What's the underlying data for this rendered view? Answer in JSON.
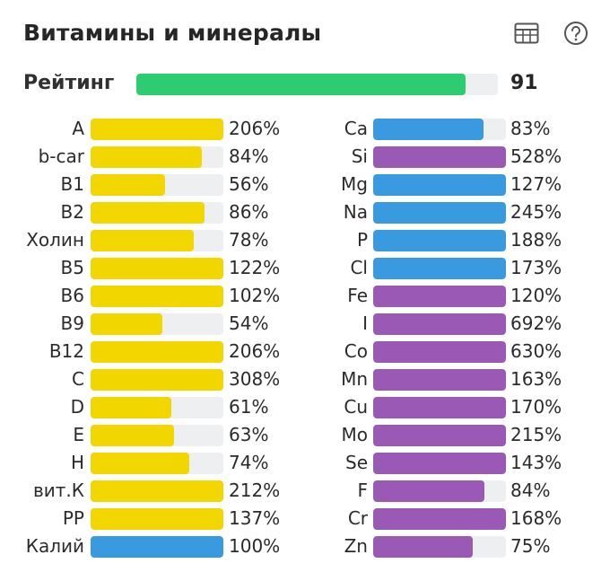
{
  "header": {
    "title": "Витамины и минералы",
    "table_icon": "table-icon",
    "help_icon": "help-circle-icon"
  },
  "rating": {
    "label": "Рейтинг",
    "value": "91",
    "fill_percent": 91
  },
  "colors": {
    "yellow": "#f2d600",
    "blue": "#3a9ae0",
    "purple": "#9b59b6",
    "green": "#2ecc71",
    "track": "#eeeff1"
  },
  "left_column": [
    {
      "name": "A",
      "value": "206%",
      "fill": 100,
      "color": "yellow"
    },
    {
      "name": "b-car",
      "value": "84%",
      "fill": 84,
      "color": "yellow"
    },
    {
      "name": "B1",
      "value": "56%",
      "fill": 56,
      "color": "yellow"
    },
    {
      "name": "B2",
      "value": "86%",
      "fill": 86,
      "color": "yellow"
    },
    {
      "name": "Холин",
      "value": "78%",
      "fill": 78,
      "color": "yellow"
    },
    {
      "name": "B5",
      "value": "122%",
      "fill": 100,
      "color": "yellow"
    },
    {
      "name": "B6",
      "value": "102%",
      "fill": 100,
      "color": "yellow"
    },
    {
      "name": "B9",
      "value": "54%",
      "fill": 54,
      "color": "yellow"
    },
    {
      "name": "B12",
      "value": "206%",
      "fill": 100,
      "color": "yellow"
    },
    {
      "name": "C",
      "value": "308%",
      "fill": 100,
      "color": "yellow"
    },
    {
      "name": "D",
      "value": "61%",
      "fill": 61,
      "color": "yellow"
    },
    {
      "name": "E",
      "value": "63%",
      "fill": 63,
      "color": "yellow"
    },
    {
      "name": "H",
      "value": "74%",
      "fill": 74,
      "color": "yellow"
    },
    {
      "name": "вит.К",
      "value": "212%",
      "fill": 100,
      "color": "yellow"
    },
    {
      "name": "PP",
      "value": "137%",
      "fill": 100,
      "color": "yellow"
    },
    {
      "name": "Калий",
      "value": "100%",
      "fill": 100,
      "color": "blue"
    }
  ],
  "right_column": [
    {
      "name": "Ca",
      "value": "83%",
      "fill": 83,
      "color": "blue"
    },
    {
      "name": "Si",
      "value": "528%",
      "fill": 100,
      "color": "purple"
    },
    {
      "name": "Mg",
      "value": "127%",
      "fill": 100,
      "color": "blue"
    },
    {
      "name": "Na",
      "value": "245%",
      "fill": 100,
      "color": "blue"
    },
    {
      "name": "P",
      "value": "188%",
      "fill": 100,
      "color": "blue"
    },
    {
      "name": "Cl",
      "value": "173%",
      "fill": 100,
      "color": "blue"
    },
    {
      "name": "Fe",
      "value": "120%",
      "fill": 100,
      "color": "purple"
    },
    {
      "name": "I",
      "value": "692%",
      "fill": 100,
      "color": "purple"
    },
    {
      "name": "Co",
      "value": "630%",
      "fill": 100,
      "color": "purple"
    },
    {
      "name": "Mn",
      "value": "163%",
      "fill": 100,
      "color": "purple"
    },
    {
      "name": "Cu",
      "value": "170%",
      "fill": 100,
      "color": "purple"
    },
    {
      "name": "Mo",
      "value": "215%",
      "fill": 100,
      "color": "purple"
    },
    {
      "name": "Se",
      "value": "143%",
      "fill": 100,
      "color": "purple"
    },
    {
      "name": "F",
      "value": "84%",
      "fill": 84,
      "color": "purple"
    },
    {
      "name": "Cr",
      "value": "168%",
      "fill": 100,
      "color": "purple"
    },
    {
      "name": "Zn",
      "value": "75%",
      "fill": 75,
      "color": "purple"
    }
  ]
}
